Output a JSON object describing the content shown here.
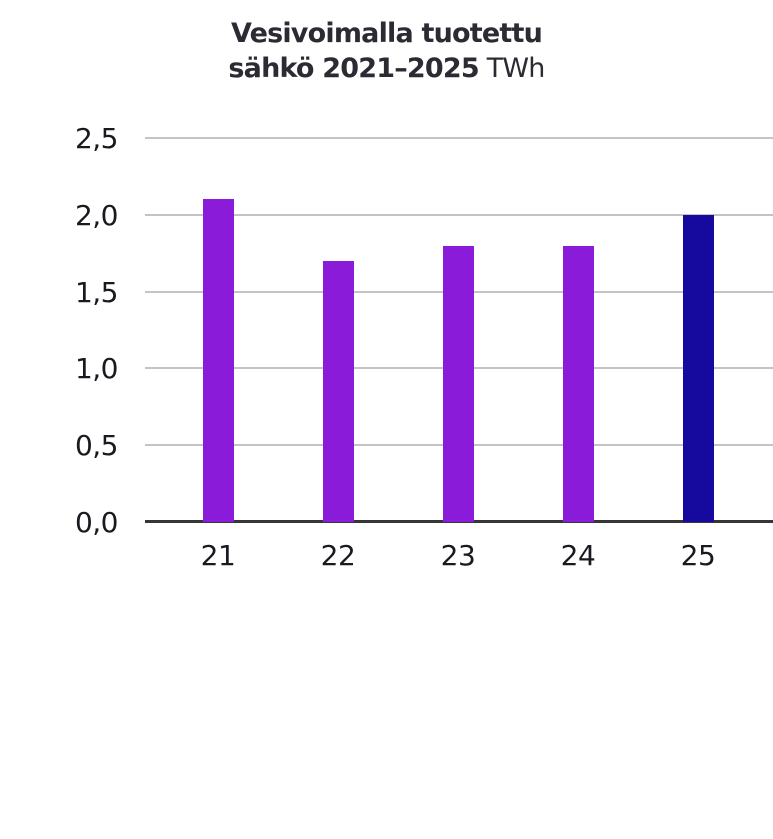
{
  "title": {
    "line1": "Vesivoimalla tuotettu",
    "line2_bold": "sähkö 2021–2025",
    "line2_regular": "TWh"
  },
  "chart_data": {
    "type": "bar",
    "title": "Vesivoimalla tuotettu sähkö 2021–2025 TWh",
    "unit": "TWh",
    "categories": [
      "21",
      "22",
      "23",
      "24",
      "25"
    ],
    "series": [
      {
        "name": "Vesivoimalla tuotettu sähkö",
        "values": [
          2.1,
          1.7,
          1.8,
          1.8,
          2.0
        ],
        "colors": [
          "#8a1bd8",
          "#8a1bd8",
          "#8a1bd8",
          "#8a1bd8",
          "#150a9d"
        ]
      }
    ],
    "xlabel": "",
    "ylabel": "",
    "ylim": [
      0,
      2.5
    ],
    "ytick_values": [
      0,
      0.5,
      1.0,
      1.5,
      2.0,
      2.5
    ],
    "ytick_labels": [
      "0,0",
      "0,5",
      "1,0",
      "1,5",
      "2,0",
      "2,5"
    ],
    "grid": true,
    "legend": false,
    "colors": {
      "bar_default": "#8a1bd8",
      "bar_highlight": "#150a9d",
      "gridline": "#c4c4c4",
      "axis_line": "#36363a",
      "tick_text": "#19191f",
      "title_text": "#2b2b33",
      "background": "#ffffff"
    }
  }
}
